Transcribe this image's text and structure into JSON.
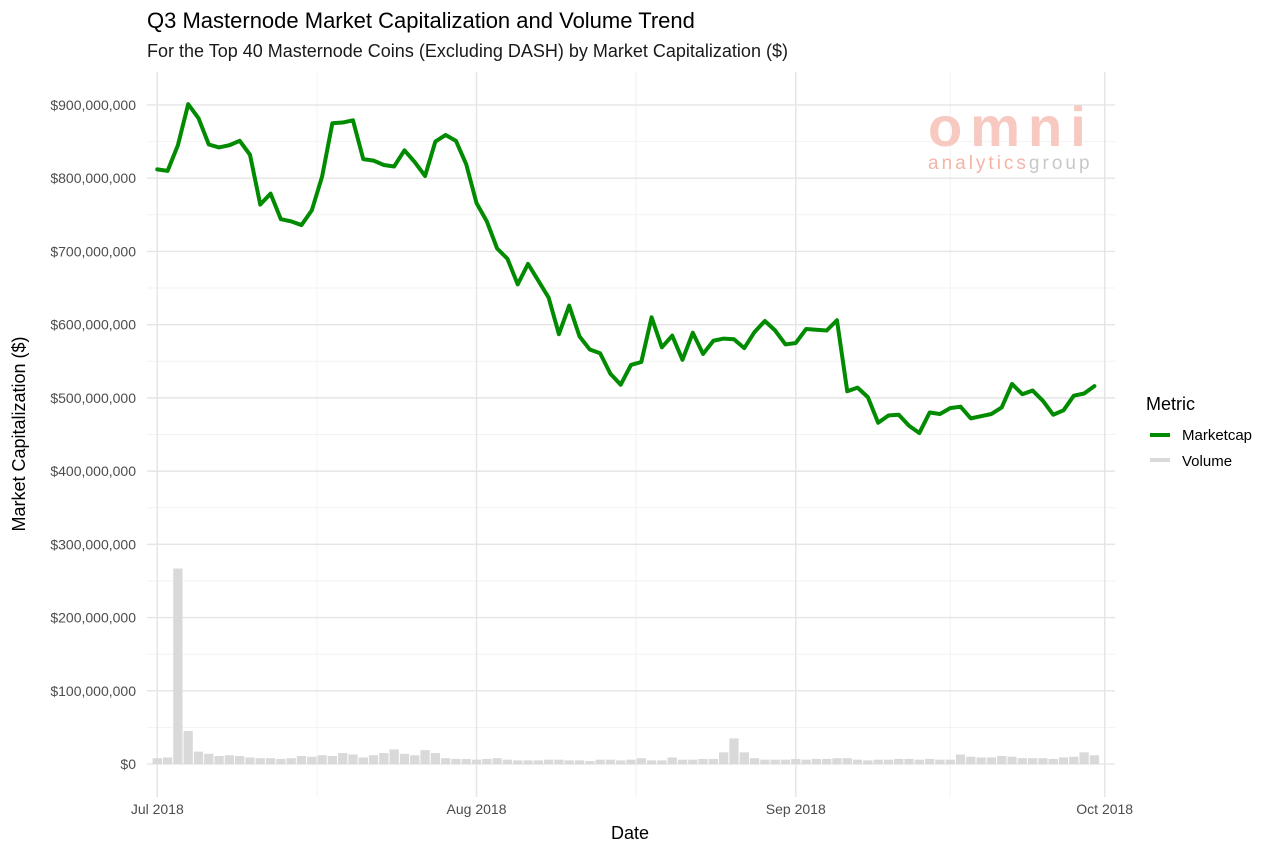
{
  "chart_data": {
    "type": "line",
    "title": "Q3 Masternode Market Capitalization and Volume Trend",
    "subtitle": "For the Top 40 Masternode Coins (Excluding DASH) by Market Capitalization ($)",
    "xlabel": "Date",
    "ylabel": "Market Capitalization ($)",
    "x_range": [
      "2018-06-30",
      "2018-10-02"
    ],
    "ylim": [
      -45000000,
      945000000
    ],
    "y_ticks": [
      0,
      100000000,
      200000000,
      300000000,
      400000000,
      500000000,
      600000000,
      700000000,
      800000000,
      900000000
    ],
    "y_tick_labels": [
      "$0",
      "$100,000,000",
      "$200,000,000",
      "$300,000,000",
      "$400,000,000",
      "$500,000,000",
      "$600,000,000",
      "$700,000,000",
      "$800,000,000",
      "$900,000,000"
    ],
    "x_ticks": [
      "2018-07-01",
      "2018-08-01",
      "2018-09-01",
      "2018-10-01"
    ],
    "x_tick_labels": [
      "Jul 2018",
      "Aug 2018",
      "Sep 2018",
      "Oct 2018"
    ],
    "grid": true,
    "legend": {
      "title": "Metric",
      "position": "right"
    },
    "start_date": "2018-07-01",
    "series": [
      {
        "name": "Marketcap",
        "kind": "line",
        "color": "#008b00",
        "values": [
          812000000,
          810000000,
          845000000,
          901000000,
          882000000,
          846000000,
          842000000,
          845000000,
          851000000,
          832000000,
          764000000,
          779000000,
          744000000,
          741000000,
          736000000,
          756000000,
          802000000,
          875000000,
          876000000,
          879000000,
          826000000,
          824000000,
          818000000,
          816000000,
          838000000,
          822000000,
          803000000,
          850000000,
          859000000,
          851000000,
          819000000,
          766000000,
          741000000,
          704000000,
          690000000,
          655000000,
          683000000,
          660000000,
          637000000,
          587000000,
          626000000,
          584000000,
          566000000,
          561000000,
          533000000,
          518000000,
          545000000,
          549000000,
          610000000,
          569000000,
          585000000,
          552000000,
          589000000,
          560000000,
          578000000,
          581000000,
          580000000,
          568000000,
          590000000,
          605000000,
          592000000,
          573000000,
          575000000,
          594000000,
          593000000,
          592000000,
          606000000,
          509000000,
          514000000,
          501000000,
          466000000,
          476000000,
          477000000,
          462000000,
          452000000,
          480000000,
          478000000,
          486000000,
          488000000,
          472000000,
          475000000,
          478000000,
          487000000,
          519000000,
          505000000,
          510000000,
          496000000,
          477000000,
          483000000,
          503000000,
          506000000,
          516000000
        ]
      },
      {
        "name": "Volume",
        "kind": "bar",
        "color": "#d9d9d9",
        "values": [
          8000000,
          9000000,
          267000000,
          45000000,
          17000000,
          14000000,
          11000000,
          12000000,
          11000000,
          9000000,
          8000000,
          8000000,
          7000000,
          8000000,
          11000000,
          10000000,
          12000000,
          11000000,
          15000000,
          13000000,
          9000000,
          12000000,
          15000000,
          20000000,
          14000000,
          12000000,
          19000000,
          15000000,
          8000000,
          7000000,
          7000000,
          6000000,
          7000000,
          8000000,
          6000000,
          5000000,
          5000000,
          5000000,
          6000000,
          6000000,
          5000000,
          5000000,
          4000000,
          6000000,
          6000000,
          5000000,
          6000000,
          8000000,
          5000000,
          5000000,
          9000000,
          6000000,
          6000000,
          7000000,
          7000000,
          16000000,
          35000000,
          16000000,
          8000000,
          6000000,
          6000000,
          6000000,
          7000000,
          6000000,
          7000000,
          7000000,
          8000000,
          8000000,
          6000000,
          5000000,
          6000000,
          6000000,
          7000000,
          7000000,
          6000000,
          7000000,
          6000000,
          6000000,
          13000000,
          10000000,
          9000000,
          9000000,
          11000000,
          10000000,
          8000000,
          8000000,
          8000000,
          7000000,
          9000000,
          10000000,
          16000000,
          12000000
        ]
      }
    ]
  },
  "watermark": {
    "logo_text": "omni",
    "word1": "analytics",
    "word2": "group"
  }
}
